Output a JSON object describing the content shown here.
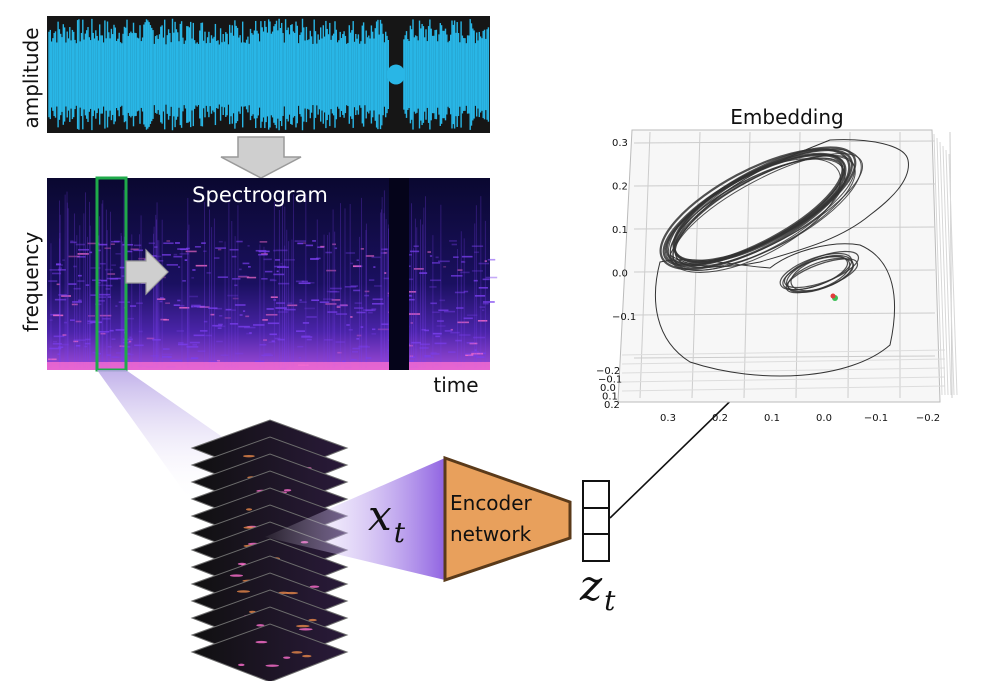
{
  "labels": {
    "amplitude": "amplitude",
    "frequency": "frequency",
    "spectrogram": "Spectrogram",
    "time": "time",
    "embedding": "Embedding",
    "encoder_line1": "Encoder",
    "encoder_line2": "network",
    "x_var": "x",
    "x_sub": "t",
    "z_var": "z",
    "z_sub": "t"
  },
  "colors": {
    "waveform": "#29b6e6",
    "spectrogram_bg": "#0d0a2e",
    "spectrogram_purple": "#7b3ff0",
    "spectrogram_pink": "#ff6fd0",
    "highlight_box": "#1faa4a",
    "encoder_fill": "#e8a05c",
    "encoder_stroke": "#5a3a1a",
    "embedding_curve": "#333333",
    "point_red": "#e23b3b",
    "point_green": "#3bbf55"
  },
  "embedding_axes": {
    "y_ticks": [
      "0.3",
      "0.2",
      "0.1",
      "0.0",
      "−0.1"
    ],
    "x_ticks": [
      "0.3",
      "0.2",
      "0.1",
      "0.0",
      "−0.1",
      "−0.2"
    ],
    "z_ticks": [
      "−0.2",
      "−0.1",
      "0.0",
      "0.1",
      "0.2"
    ]
  }
}
